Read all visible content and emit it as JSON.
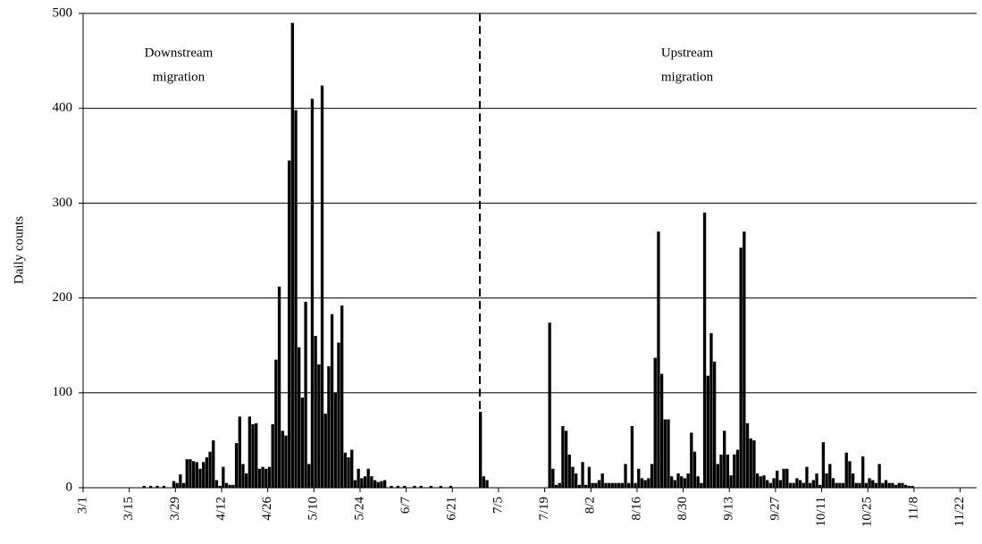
{
  "chart_data": {
    "type": "bar",
    "y_label": "Daily counts",
    "annotations": [
      {
        "lines": [
          "Downstream",
          "migration"
        ]
      },
      {
        "lines": [
          "Upstream",
          "migration"
        ]
      }
    ],
    "categories": [
      "3/1",
      null,
      null,
      null,
      null,
      null,
      null,
      null,
      null,
      null,
      null,
      null,
      null,
      null,
      "3/15",
      null,
      null,
      null,
      null,
      null,
      null,
      null,
      null,
      null,
      null,
      null,
      null,
      null,
      "3/29",
      null,
      null,
      null,
      null,
      null,
      null,
      null,
      null,
      null,
      null,
      null,
      null,
      null,
      "4/12",
      null,
      null,
      null,
      null,
      null,
      null,
      null,
      null,
      null,
      null,
      null,
      null,
      null,
      "4/26",
      null,
      null,
      null,
      null,
      null,
      null,
      null,
      null,
      null,
      null,
      null,
      null,
      null,
      "5/10",
      null,
      null,
      null,
      null,
      null,
      null,
      null,
      null,
      null,
      null,
      null,
      null,
      null,
      "5/24",
      null,
      null,
      null,
      null,
      null,
      null,
      null,
      null,
      null,
      null,
      null,
      null,
      null,
      "6/7",
      null,
      null,
      null,
      null,
      null,
      null,
      null,
      null,
      null,
      null,
      null,
      null,
      null,
      "6/21",
      null,
      null,
      null,
      null,
      null,
      null,
      null,
      null,
      null,
      null,
      null,
      null,
      null,
      "7/5",
      null,
      null,
      null,
      null,
      null,
      null,
      null,
      null,
      null,
      null,
      null,
      null,
      null,
      "7/19",
      null,
      null,
      null,
      null,
      null,
      null,
      null,
      null,
      null,
      null,
      null,
      null,
      null,
      "8/2",
      null,
      null,
      null,
      null,
      null,
      null,
      null,
      null,
      null,
      null,
      null,
      null,
      null,
      "8/16",
      null,
      null,
      null,
      null,
      null,
      null,
      null,
      null,
      null,
      null,
      null,
      null,
      null,
      "8/30",
      null,
      null,
      null,
      null,
      null,
      null,
      null,
      null,
      null,
      null,
      null,
      null,
      null,
      "9/13",
      null,
      null,
      null,
      null,
      null,
      null,
      null,
      null,
      null,
      null,
      null,
      null,
      null,
      "9/27",
      null,
      null,
      null,
      null,
      null,
      null,
      null,
      null,
      null,
      null,
      null,
      null,
      null,
      "10/11",
      null,
      null,
      null,
      null,
      null,
      null,
      null,
      null,
      null,
      null,
      null,
      null,
      null,
      "10/25",
      null,
      null,
      null,
      null,
      null,
      null,
      null,
      null,
      null,
      null,
      null,
      null,
      null,
      "11/8",
      null,
      null,
      null,
      null,
      null,
      null,
      null,
      null,
      null,
      null,
      null,
      null,
      null,
      "11/22",
      null,
      null,
      null,
      null
    ],
    "values": [
      0,
      0,
      0,
      0,
      0,
      0,
      0,
      0,
      0,
      0,
      0,
      0,
      0,
      0,
      0,
      0,
      0,
      0,
      2,
      0,
      2,
      0,
      2,
      0,
      2,
      0,
      0,
      7,
      5,
      14,
      5,
      30,
      30,
      28,
      27,
      20,
      27,
      32,
      38,
      50,
      8,
      2,
      22,
      5,
      3,
      3,
      47,
      75,
      25,
      15,
      75,
      67,
      68,
      20,
      22,
      20,
      22,
      67,
      135,
      212,
      60,
      55,
      345,
      490,
      398,
      148,
      95,
      196,
      25,
      410,
      160,
      130,
      424,
      78,
      128,
      183,
      100,
      153,
      192,
      37,
      32,
      40,
      8,
      20,
      10,
      12,
      20,
      12,
      8,
      6,
      7,
      8,
      0,
      2,
      0,
      2,
      0,
      2,
      0,
      0,
      2,
      0,
      2,
      0,
      0,
      2,
      0,
      0,
      2,
      0,
      0,
      2,
      0,
      0,
      0,
      0,
      0,
      0,
      0,
      0,
      80,
      12,
      8,
      0,
      0,
      0,
      0,
      0,
      0,
      0,
      0,
      0,
      0,
      0,
      0,
      0,
      0,
      0,
      0,
      0,
      0,
      174,
      20,
      3,
      5,
      65,
      60,
      35,
      22,
      15,
      3,
      27,
      3,
      22,
      5,
      5,
      8,
      15,
      5,
      5,
      5,
      5,
      5,
      5,
      25,
      5,
      65,
      5,
      20,
      10,
      8,
      10,
      25,
      137,
      270,
      120,
      72,
      72,
      12,
      8,
      15,
      12,
      10,
      15,
      58,
      38,
      12,
      5,
      290,
      118,
      163,
      133,
      25,
      35,
      60,
      35,
      13,
      35,
      40,
      253,
      270,
      68,
      52,
      50,
      15,
      12,
      13,
      8,
      5,
      10,
      18,
      8,
      20,
      20,
      5,
      5,
      10,
      8,
      5,
      22,
      5,
      8,
      15,
      3,
      48,
      15,
      25,
      10,
      5,
      5,
      5,
      37,
      28,
      15,
      5,
      5,
      33,
      5,
      10,
      8,
      5,
      25,
      5,
      8,
      5,
      5,
      3,
      5,
      5,
      3,
      2,
      2,
      0,
      0,
      0,
      0,
      0,
      0,
      0,
      0,
      0,
      0,
      0,
      0,
      0,
      0,
      0,
      0,
      0,
      0,
      0
    ],
    "color": "#000000",
    "ylim": [
      0,
      500
    ],
    "yticks": [
      0,
      100,
      200,
      300,
      400,
      500
    ],
    "grid": true
  }
}
